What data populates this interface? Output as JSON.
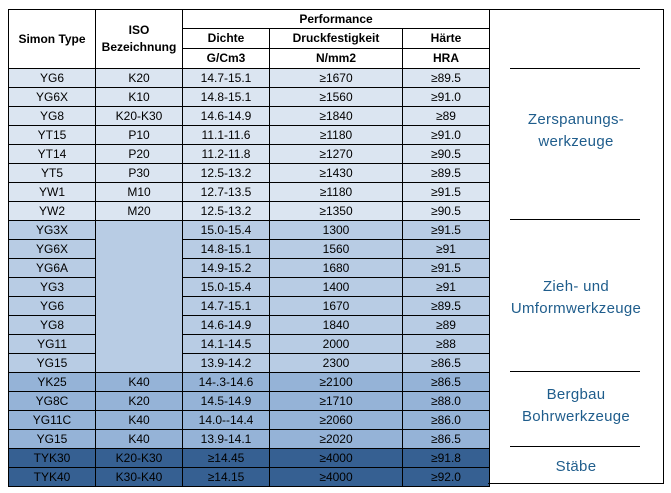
{
  "headers": {
    "simon_type": "Simon Type",
    "iso_line1": "ISO",
    "iso_line2": "Bezeichnung",
    "performance": "Performance",
    "density": "Dichte",
    "density_unit": "G/Cm3",
    "strength": "Druckfestigkeit",
    "strength_unit": "N/mm2",
    "hardness": "Härte",
    "hardness_unit": "HRA"
  },
  "rows_group1": [
    {
      "type": "YG6",
      "iso": "K20",
      "density": "14.7-15.1",
      "strength": "≥1670",
      "hardness": "≥89.5"
    },
    {
      "type": "YG6X",
      "iso": "K10",
      "density": "14.8-15.1",
      "strength": "≥1560",
      "hardness": "≥91.0"
    },
    {
      "type": "YG8",
      "iso": "K20-K30",
      "density": "14.6-14.9",
      "strength": "≥1840",
      "hardness": "≥89"
    },
    {
      "type": "YT15",
      "iso": "P10",
      "density": "11.1-11.6",
      "strength": "≥1180",
      "hardness": "≥91.0"
    },
    {
      "type": "YT14",
      "iso": "P20",
      "density": "11.2-11.8",
      "strength": "≥1270",
      "hardness": "≥90.5"
    },
    {
      "type": "YT5",
      "iso": "P30",
      "density": "12.5-13.2",
      "strength": "≥1430",
      "hardness": "≥89.5"
    },
    {
      "type": "YW1",
      "iso": "M10",
      "density": "12.7-13.5",
      "strength": "≥1180",
      "hardness": "≥91.5"
    },
    {
      "type": "YW2",
      "iso": "M20",
      "density": "12.5-13.2",
      "strength": "≥1350",
      "hardness": "≥90.5"
    }
  ],
  "rows_group2": [
    {
      "type": "YG3X",
      "density": "15.0-15.4",
      "strength": "1300",
      "hardness": "≥91.5"
    },
    {
      "type": "YG6X",
      "density": "14.8-15.1",
      "strength": "1560",
      "hardness": "≥91"
    },
    {
      "type": "YG6A",
      "density": "14.9-15.2",
      "strength": "1680",
      "hardness": "≥91.5"
    },
    {
      "type": "YG3",
      "density": "15.0-15.4",
      "strength": "1400",
      "hardness": "≥91"
    },
    {
      "type": "YG6",
      "density": "14.7-15.1",
      "strength": "1670",
      "hardness": "≥89.5"
    },
    {
      "type": "YG8",
      "density": "14.6-14.9",
      "strength": "1840",
      "hardness": "≥89"
    },
    {
      "type": "YG11",
      "density": "14.1-14.5",
      "strength": "2000",
      "hardness": "≥88"
    },
    {
      "type": "YG15",
      "density": "13.9-14.2",
      "strength": "2300",
      "hardness": "≥86.5"
    }
  ],
  "rows_group3": [
    {
      "type": "YK25",
      "iso": "K40",
      "density": "14-.3-14.6",
      "strength": "≥2100",
      "hardness": "≥86.5"
    },
    {
      "type": "YG8C",
      "iso": "K20",
      "density": "14.5-14.9",
      "strength": "≥1710",
      "hardness": "≥88.0"
    },
    {
      "type": "YG11C",
      "iso": "K40",
      "density": "14.0--14.4",
      "strength": "≥2060",
      "hardness": "≥86.0"
    },
    {
      "type": "YG15",
      "iso": "K40",
      "density": "13.9-14.1",
      "strength": "≥2020",
      "hardness": "≥86.5"
    }
  ],
  "rows_group4": [
    {
      "type": "TYK30",
      "iso": "K20-K30",
      "density": "≥14.45",
      "strength": "≥4000",
      "hardness": "≥91.8"
    },
    {
      "type": "TYK40",
      "iso": "K30-K40",
      "density": "≥14.15",
      "strength": "≥4000",
      "hardness": "≥92.0"
    }
  ],
  "applications": {
    "a1_line1": "Zerspanungs-",
    "a1_line2": "werkzeuge",
    "a2_line1": "Zieh- und",
    "a2_line2": "Umformwerkzeuge",
    "a3_line1": "Bergbau",
    "a3_line2": "Bohrwerkzeuge",
    "a4_line1": "Stäbe"
  },
  "colors": {
    "group1": "#dbe5f1",
    "group2": "#b8cce4",
    "group3": "#95b3d7",
    "group4": "#366092",
    "application_text": "#1f5d8c"
  }
}
